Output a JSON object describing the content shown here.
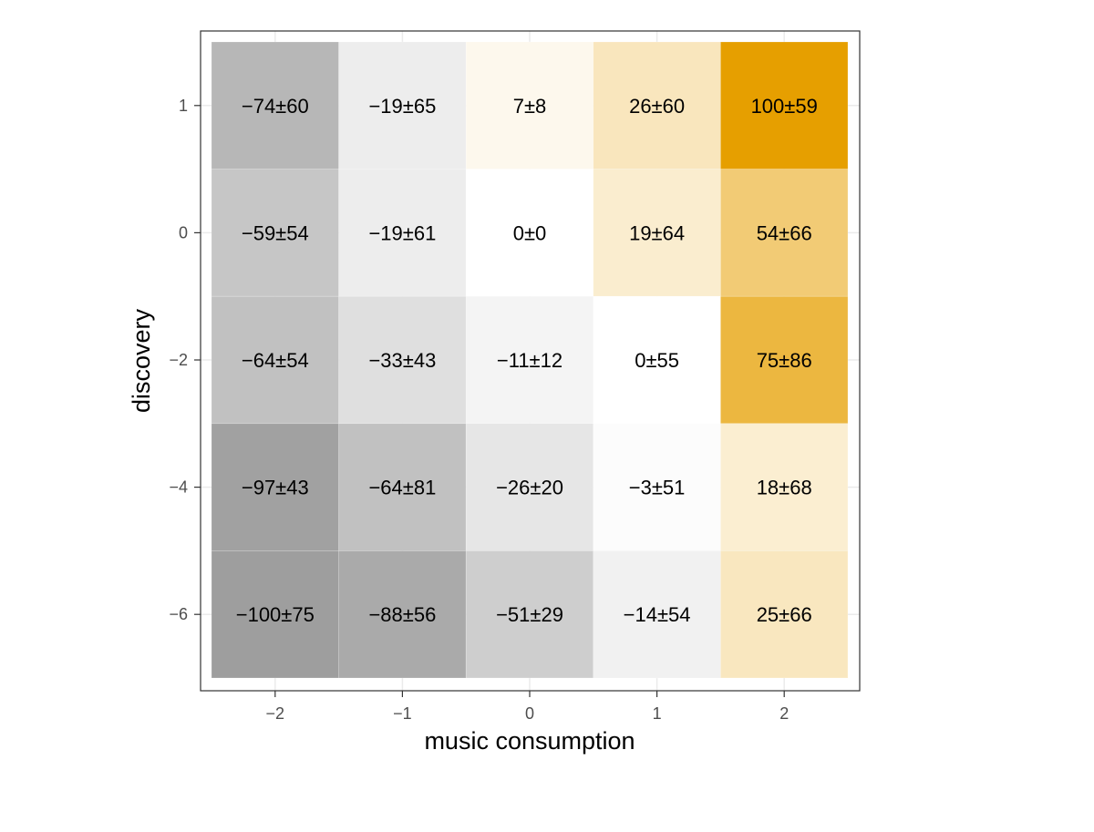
{
  "chart_data": {
    "type": "heatmap",
    "xlabel": "music consumption",
    "ylabel": "discovery",
    "x_values": [
      -2,
      -1,
      0,
      1,
      2
    ],
    "x_tick_labels": [
      "−2",
      "−1",
      "0",
      "1",
      "2"
    ],
    "y_values": [
      1,
      0,
      -2,
      -4,
      -6
    ],
    "y_tick_labels": [
      "1",
      "0",
      "−2",
      "−4",
      "−6"
    ],
    "cells": [
      {
        "x": -2,
        "y": 1,
        "value": -74,
        "error": 60,
        "label": "−74±60"
      },
      {
        "x": -1,
        "y": 1,
        "value": -19,
        "error": 65,
        "label": "−19±65"
      },
      {
        "x": 0,
        "y": 1,
        "value": 7,
        "error": 8,
        "label": "7±8"
      },
      {
        "x": 1,
        "y": 1,
        "value": 26,
        "error": 60,
        "label": "26±60"
      },
      {
        "x": 2,
        "y": 1,
        "value": 100,
        "error": 59,
        "label": "100±59"
      },
      {
        "x": -2,
        "y": 0,
        "value": -59,
        "error": 54,
        "label": "−59±54"
      },
      {
        "x": -1,
        "y": 0,
        "value": -19,
        "error": 61,
        "label": "−19±61"
      },
      {
        "x": 0,
        "y": 0,
        "value": 0,
        "error": 0,
        "label": "0±0"
      },
      {
        "x": 1,
        "y": 0,
        "value": 19,
        "error": 64,
        "label": "19±64"
      },
      {
        "x": 2,
        "y": 0,
        "value": 54,
        "error": 66,
        "label": "54±66"
      },
      {
        "x": -2,
        "y": -2,
        "value": -64,
        "error": 54,
        "label": "−64±54"
      },
      {
        "x": -1,
        "y": -2,
        "value": -33,
        "error": 43,
        "label": "−33±43"
      },
      {
        "x": 0,
        "y": -2,
        "value": -11,
        "error": 12,
        "label": "−11±12"
      },
      {
        "x": 1,
        "y": -2,
        "value": 0,
        "error": 55,
        "label": "0±55"
      },
      {
        "x": 2,
        "y": -2,
        "value": 75,
        "error": 86,
        "label": "75±86"
      },
      {
        "x": -2,
        "y": -4,
        "value": -97,
        "error": 43,
        "label": "−97±43"
      },
      {
        "x": -1,
        "y": -4,
        "value": -64,
        "error": 81,
        "label": "−64±81"
      },
      {
        "x": 0,
        "y": -4,
        "value": -26,
        "error": 20,
        "label": "−26±20"
      },
      {
        "x": 1,
        "y": -4,
        "value": -3,
        "error": 51,
        "label": "−3±51"
      },
      {
        "x": 2,
        "y": -4,
        "value": 18,
        "error": 68,
        "label": "18±68"
      },
      {
        "x": -2,
        "y": -6,
        "value": -100,
        "error": 75,
        "label": "−100±75"
      },
      {
        "x": -1,
        "y": -6,
        "value": -88,
        "error": 56,
        "label": "−88±56"
      },
      {
        "x": 0,
        "y": -6,
        "value": -51,
        "error": 29,
        "label": "−51±29"
      },
      {
        "x": 1,
        "y": -6,
        "value": -14,
        "error": 54,
        "label": "−14±54"
      },
      {
        "x": 2,
        "y": -6,
        "value": 25,
        "error": 66,
        "label": "25±66"
      }
    ],
    "color_scale": {
      "low_value": -100,
      "low_color": "#9e9e9e",
      "mid_value": 0,
      "mid_color": "#ffffff",
      "high_value": 100,
      "high_color": "#e69f00"
    },
    "grid": true,
    "legend": "none"
  }
}
